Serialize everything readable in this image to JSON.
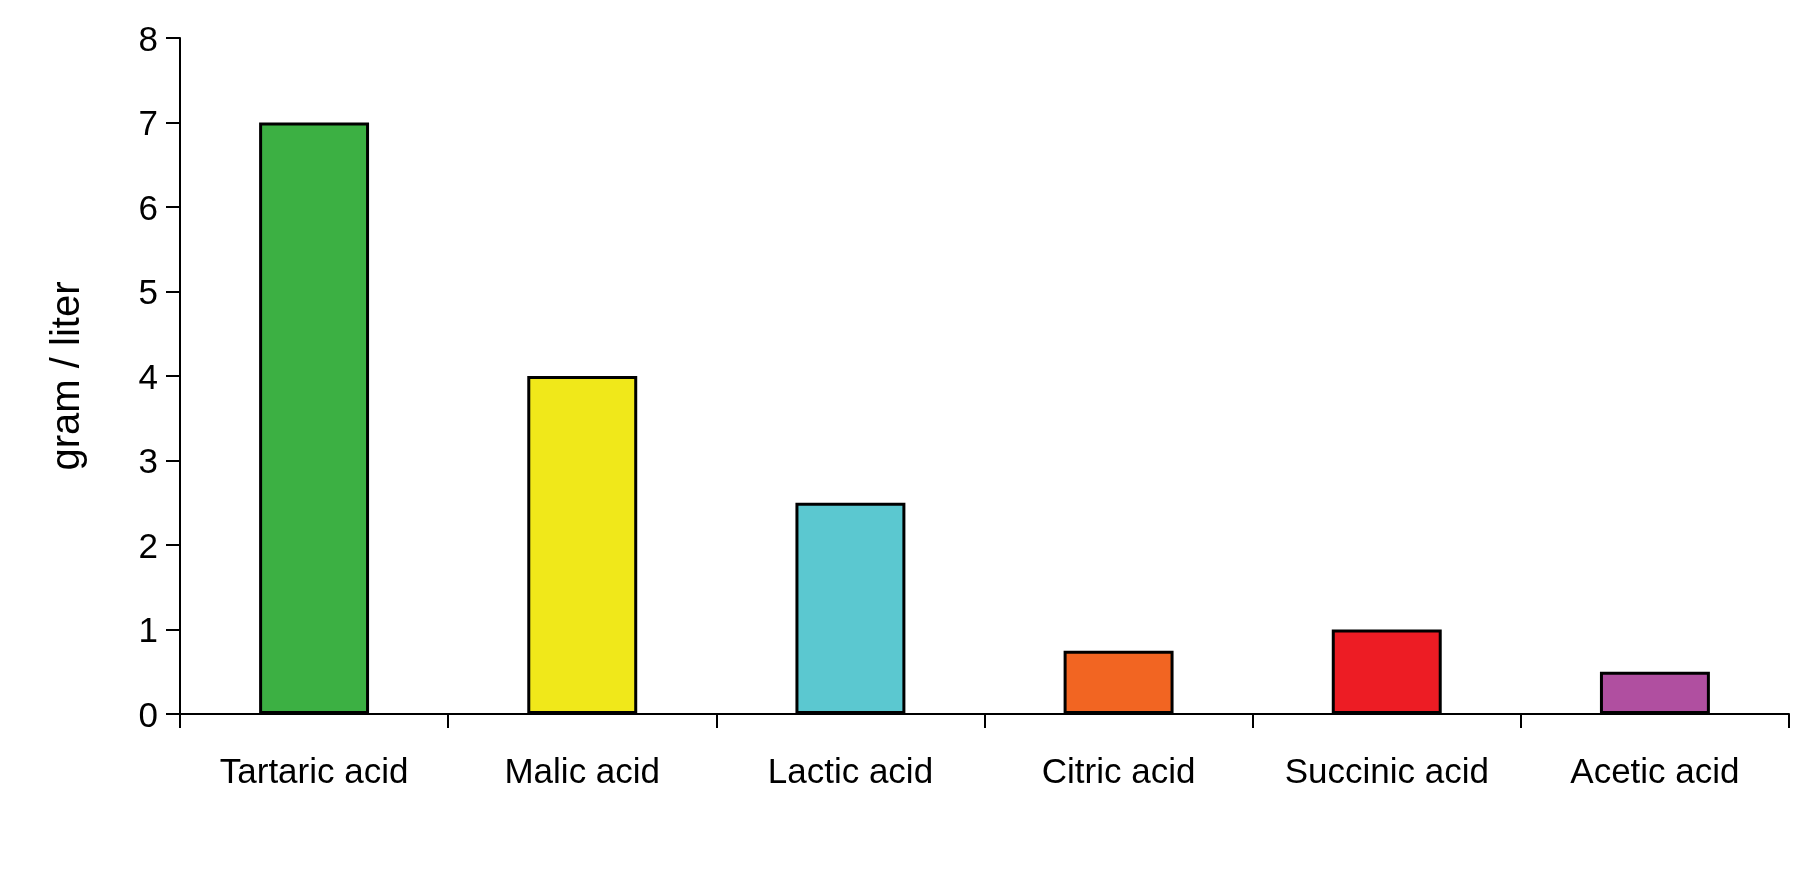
{
  "chart_data": {
    "type": "bar",
    "ylabel": "gram / liter",
    "categories": [
      "Tartaric acid",
      "Malic acid",
      "Lactic acid",
      "Citric acid",
      "Succinic acid",
      "Acetic acid"
    ],
    "values": [
      7,
      4,
      2.5,
      0.75,
      1,
      0.5
    ],
    "colors": [
      "#3cb043",
      "#f0e81a",
      "#5bc8d0",
      "#f26522",
      "#ed1c24",
      "#b04fa0"
    ],
    "ylim": [
      0,
      8
    ],
    "yticks": [
      0,
      1,
      2,
      3,
      4,
      5,
      6,
      7,
      8
    ],
    "grid": false
  }
}
